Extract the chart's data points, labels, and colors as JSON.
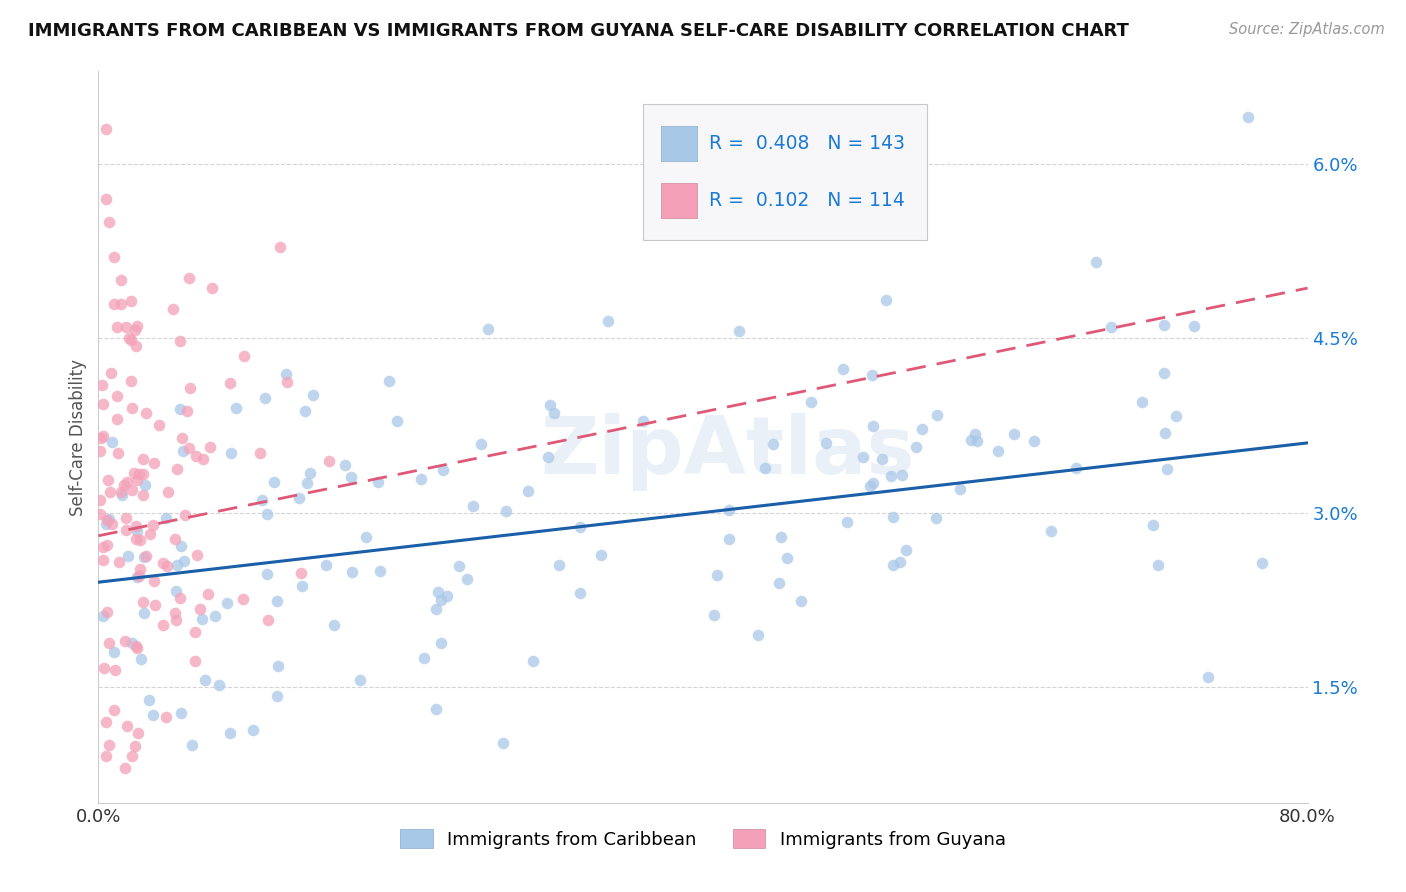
{
  "title": "IMMIGRANTS FROM CARIBBEAN VS IMMIGRANTS FROM GUYANA SELF-CARE DISABILITY CORRELATION CHART",
  "source": "Source: ZipAtlas.com",
  "ylabel": "Self-Care Disability",
  "y_ticks": [
    0.015,
    0.03,
    0.045,
    0.06
  ],
  "y_tick_labels": [
    "1.5%",
    "3.0%",
    "4.5%",
    "6.0%"
  ],
  "x_lim": [
    0.0,
    0.8
  ],
  "y_lim": [
    0.005,
    0.068
  ],
  "r_caribbean": 0.408,
  "n_caribbean": 143,
  "r_guyana": 0.102,
  "n_guyana": 114,
  "color_caribbean": "#a8c8e8",
  "color_guyana": "#f4a0b8",
  "color_trend_caribbean": "#1a5fa8",
  "color_trend_guyana": "#e05878",
  "color_r_value": "#1a7ad4",
  "legend_label_caribbean": "Immigrants from Caribbean",
  "legend_label_guyana": "Immigrants from Guyana",
  "watermark": "ZipAtlas",
  "background_color": "#ffffff",
  "grid_color": "#d0d0d0",
  "title_color": "#111111"
}
